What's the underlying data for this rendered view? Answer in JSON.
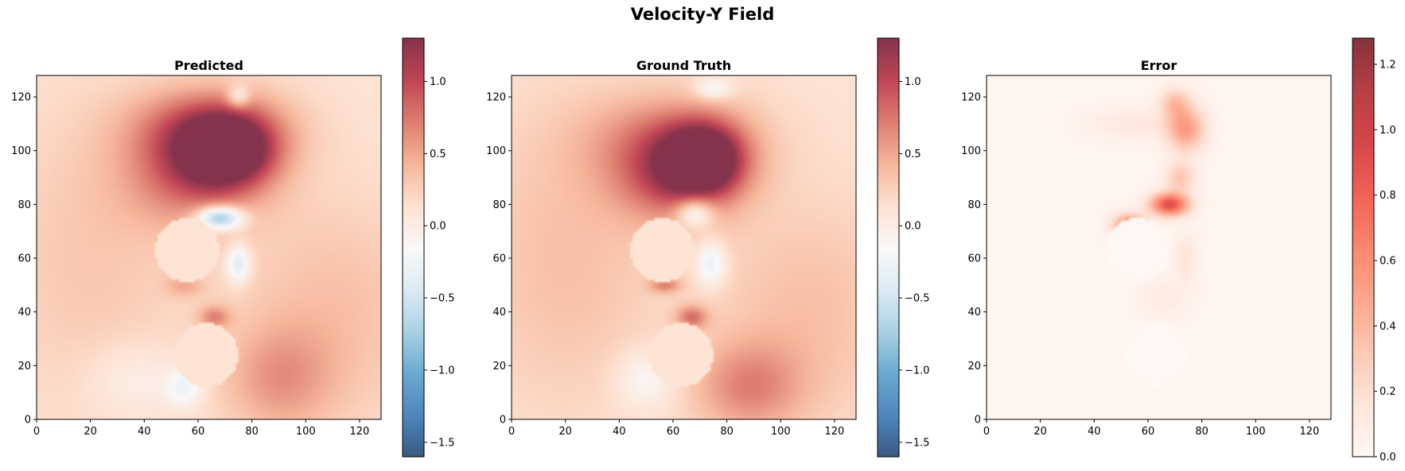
{
  "figure": {
    "title": "Velocity-Y Field"
  },
  "chart_data": [
    {
      "type": "heatmap",
      "title": "Predicted",
      "xlim": [
        0,
        128
      ],
      "ylim": [
        0,
        128
      ],
      "xticks": [
        "0",
        "20",
        "40",
        "60",
        "80",
        "100",
        "120"
      ],
      "yticks": [
        "0",
        "20",
        "40",
        "60",
        "80",
        "100",
        "120"
      ],
      "colormap": "RdBu_r",
      "colorbar": {
        "range": [
          -1.6,
          1.3
        ],
        "ticks": [
          "−1.5",
          "−1.0",
          "−0.5",
          "0.0",
          "0.5",
          "1.0"
        ],
        "tick_values": [
          -1.5,
          -1.0,
          -0.5,
          0.0,
          0.5,
          1.0
        ]
      },
      "obstacles": [
        {
          "cx": 56,
          "cy": 63,
          "r": 12
        },
        {
          "cx": 63,
          "cy": 24,
          "r": 12
        }
      ],
      "features": [
        {
          "x": 72,
          "y": 100,
          "value": 1.1,
          "sx": 12,
          "sy": 9
        },
        {
          "x": 60,
          "y": 93,
          "value": 0.8,
          "sx": 18,
          "sy": 14
        },
        {
          "x": 65,
          "y": 110,
          "value": 0.6,
          "sx": 20,
          "sy": 10
        },
        {
          "x": 75,
          "y": 120,
          "value": -0.5,
          "sx": 3,
          "sy": 3
        },
        {
          "x": 68,
          "y": 75,
          "value": -1.2,
          "sx": 6,
          "sy": 3
        },
        {
          "x": 75,
          "y": 58,
          "value": -0.6,
          "sx": 3,
          "sy": 5
        },
        {
          "x": 66,
          "y": 38,
          "value": 0.5,
          "sx": 4,
          "sy": 3
        },
        {
          "x": 55,
          "y": 50,
          "value": 0.3,
          "sx": 5,
          "sy": 3
        },
        {
          "x": 35,
          "y": 15,
          "value": -0.2,
          "sx": 12,
          "sy": 10
        },
        {
          "x": 55,
          "y": 12,
          "value": -0.4,
          "sx": 5,
          "sy": 5
        },
        {
          "x": 90,
          "y": 15,
          "value": 0.4,
          "sx": 14,
          "sy": 14
        },
        {
          "x": 110,
          "y": 40,
          "value": 0.25,
          "sx": 25,
          "sy": 30
        },
        {
          "x": 20,
          "y": 60,
          "value": 0.2,
          "sx": 25,
          "sy": 40
        }
      ]
    },
    {
      "type": "heatmap",
      "title": "Ground Truth",
      "xlim": [
        0,
        128
      ],
      "ylim": [
        0,
        128
      ],
      "xticks": [
        "0",
        "20",
        "40",
        "60",
        "80",
        "100",
        "120"
      ],
      "yticks": [
        "0",
        "20",
        "40",
        "60",
        "80",
        "100",
        "120"
      ],
      "colormap": "RdBu_r",
      "colorbar": {
        "range": [
          -1.6,
          1.3
        ],
        "ticks": [
          "−1.5",
          "−1.0",
          "−0.5",
          "0.0",
          "0.5",
          "1.0"
        ],
        "tick_values": [
          -1.5,
          -1.0,
          -0.5,
          0.0,
          0.5,
          1.0
        ]
      },
      "obstacles": [
        {
          "cx": 56,
          "cy": 63,
          "r": 12
        },
        {
          "cx": 63,
          "cy": 24,
          "r": 12
        }
      ],
      "features": [
        {
          "x": 72,
          "y": 97,
          "value": 1.1,
          "sx": 10,
          "sy": 9
        },
        {
          "x": 62,
          "y": 90,
          "value": 0.8,
          "sx": 16,
          "sy": 12
        },
        {
          "x": 60,
          "y": 105,
          "value": 0.5,
          "sx": 22,
          "sy": 12
        },
        {
          "x": 75,
          "y": 123,
          "value": -0.4,
          "sx": 5,
          "sy": 3
        },
        {
          "x": 68,
          "y": 77,
          "value": -0.7,
          "sx": 5,
          "sy": 4
        },
        {
          "x": 74,
          "y": 58,
          "value": -0.5,
          "sx": 4,
          "sy": 6
        },
        {
          "x": 67,
          "y": 38,
          "value": 0.6,
          "sx": 4,
          "sy": 3
        },
        {
          "x": 57,
          "y": 50,
          "value": 0.5,
          "sx": 4,
          "sy": 2
        },
        {
          "x": 50,
          "y": 15,
          "value": -0.3,
          "sx": 8,
          "sy": 8
        },
        {
          "x": 88,
          "y": 12,
          "value": 0.5,
          "sx": 14,
          "sy": 12
        },
        {
          "x": 110,
          "y": 40,
          "value": 0.25,
          "sx": 25,
          "sy": 30
        },
        {
          "x": 20,
          "y": 60,
          "value": 0.25,
          "sx": 25,
          "sy": 40
        }
      ]
    },
    {
      "type": "heatmap",
      "title": "Error",
      "xlim": [
        0,
        128
      ],
      "ylim": [
        0,
        128
      ],
      "xticks": [
        "0",
        "20",
        "40",
        "60",
        "80",
        "100",
        "120"
      ],
      "yticks": [
        "0",
        "20",
        "40",
        "60",
        "80",
        "100",
        "120"
      ],
      "colormap": "Reds",
      "colorbar": {
        "range": [
          0,
          1.28
        ],
        "ticks": [
          "0.0",
          "0.2",
          "0.4",
          "0.6",
          "0.8",
          "1.0",
          "1.2"
        ],
        "tick_values": [
          0.0,
          0.2,
          0.4,
          0.6,
          0.8,
          1.0,
          1.2
        ]
      },
      "obstacles": [
        {
          "cx": 56,
          "cy": 63,
          "r": 12
        },
        {
          "cx": 63,
          "cy": 24,
          "r": 12
        }
      ],
      "features": [
        {
          "x": 68,
          "y": 80,
          "value": 0.9,
          "sx": 5,
          "sy": 3
        },
        {
          "x": 53,
          "y": 72,
          "value": 0.7,
          "sx": 4,
          "sy": 3
        },
        {
          "x": 74,
          "y": 108,
          "value": 0.5,
          "sx": 5,
          "sy": 6
        },
        {
          "x": 70,
          "y": 118,
          "value": 0.3,
          "sx": 4,
          "sy": 4
        },
        {
          "x": 72,
          "y": 90,
          "value": 0.3,
          "sx": 4,
          "sy": 4
        },
        {
          "x": 55,
          "y": 110,
          "value": 0.12,
          "sx": 12,
          "sy": 4
        },
        {
          "x": 66,
          "y": 45,
          "value": 0.1,
          "sx": 6,
          "sy": 5
        },
        {
          "x": 74,
          "y": 60,
          "value": 0.15,
          "sx": 3,
          "sy": 6
        }
      ]
    }
  ]
}
